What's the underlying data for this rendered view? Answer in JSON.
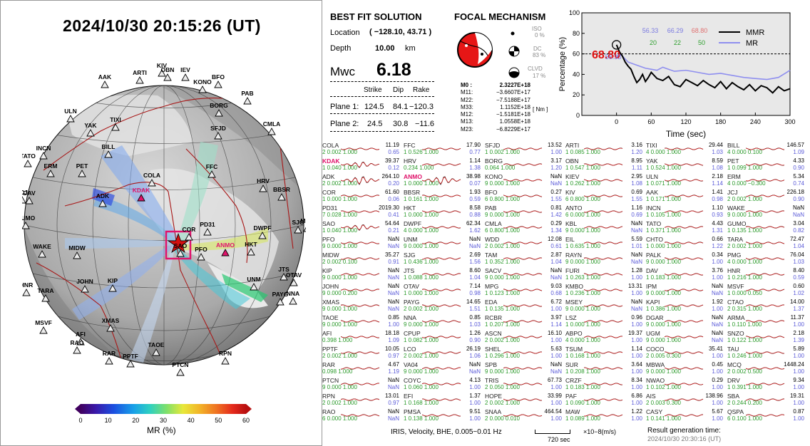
{
  "datetime": "2024/10/30  20:15:26 (UT)",
  "colorbar": {
    "label": "MR (%)",
    "ticks": [
      "0",
      "10",
      "20",
      "30",
      "40",
      "50",
      "60"
    ]
  },
  "solution": {
    "title": "BEST FIT SOLUTION",
    "location_label": "Location",
    "location_value": "( −128.10,  43.71 )",
    "depth_label": "Depth",
    "depth_value": "10.00",
    "depth_unit": "km",
    "mw_label": "Mwc",
    "mw_value": "6.18",
    "hdr": [
      "Strike",
      "Dip",
      "Rake"
    ],
    "plane1_label": "Plane 1:",
    "plane1": [
      "124.5",
      "84.1",
      "−120.3"
    ],
    "plane2_label": "Plane 2:",
    "plane2": [
      "24.5",
      "30.8",
      "−11.6"
    ]
  },
  "focal": {
    "title": "FOCAL MECHANISM",
    "iso_label": "ISO",
    "iso": "0 %",
    "dc_label": "DC",
    "dc": "83 %",
    "clvd_label": "CLVD",
    "clvd": "17 %",
    "m_unit": "[ Nm ]",
    "moments": [
      [
        "M0 :",
        "2.3227E+18"
      ],
      [
        "M11:",
        "−3.6607E+17"
      ],
      [
        "M22:",
        "−7.5188E+17"
      ],
      [
        "M33:",
        "1.1152E+18"
      ],
      [
        "M12:",
        "−1.5181E+18"
      ],
      [
        "M13:",
        "1.0558E+18"
      ],
      [
        "M23:",
        "−6.8229E+17"
      ]
    ]
  },
  "chart_data": {
    "type": "line",
    "xlabel": "Time (sec)",
    "ylabel": "Percentage (%)",
    "xlim": [
      -60,
      300
    ],
    "ylim": [
      0,
      100
    ],
    "xticks": [
      "0",
      "60",
      "120",
      "180",
      "240",
      "300"
    ],
    "yticks": [
      "0",
      "20",
      "40",
      "60",
      "80",
      "100"
    ],
    "peak_label": "68.80",
    "mr_marker_label": "56.33",
    "stats_top": [
      "56.33",
      "66.29",
      "68.80"
    ],
    "stats_bottom": [
      "20",
      "22",
      "50"
    ],
    "series": [
      {
        "name": "MMR",
        "color": "#000000",
        "x": [
          0,
          5,
          10,
          15,
          20,
          25,
          30,
          35,
          40,
          45,
          50,
          55,
          60,
          70,
          80,
          90,
          100,
          110,
          120,
          130,
          140,
          150,
          160,
          170,
          180,
          190,
          200,
          210,
          220,
          230,
          240,
          250,
          260,
          270,
          280,
          290,
          300
        ],
        "y": [
          68.8,
          62,
          58,
          52,
          48,
          45,
          38,
          32,
          35,
          40,
          33,
          37,
          42,
          36,
          34,
          38,
          30,
          28,
          35,
          32,
          29,
          34,
          30,
          27,
          33,
          26,
          32,
          28,
          25,
          30,
          24,
          29,
          27,
          22,
          28,
          24,
          26
        ]
      },
      {
        "name": "MR",
        "color": "#8f8fef",
        "x": [
          0,
          5,
          10,
          20,
          30,
          40,
          50,
          60,
          70,
          80,
          90,
          100,
          120,
          140,
          160,
          180,
          200,
          220,
          240,
          260,
          280,
          300
        ],
        "y": [
          56.3,
          60,
          58,
          52,
          50,
          48,
          46,
          45,
          44,
          47,
          45,
          43,
          44,
          42,
          40,
          41,
          39,
          37,
          36,
          35,
          37,
          44
        ]
      }
    ],
    "reference_line": 60
  },
  "stations": [
    [
      {
        "n": "COLA",
        "a": "11.19",
        "b": "0.65",
        "s": "2  0.002  1.000"
      },
      {
        "n": "KDAK",
        "a": "39.37",
        "b": "0.12",
        "s": "1  0.040  1.000",
        "red": true,
        "w": 1
      },
      {
        "n": "ADK",
        "a": "264.10",
        "b": "0.20",
        "s": "2  0.002  1.000",
        "w": 2
      },
      {
        "n": "COR",
        "a": "61.60",
        "b": "0.06",
        "s": "1  0.000  1.000"
      },
      {
        "n": "PD31",
        "a": "2019.30",
        "b": "0.41",
        "s": "7  0.028  1.000"
      },
      {
        "n": "SAO",
        "a": "54.64",
        "b": "0.21",
        "s": "1  0.040  1.000",
        "w": 1
      },
      {
        "n": "PFO",
        "a": "NaN",
        "b": "NaN",
        "s": "9  0.000  1.000"
      },
      {
        "n": "MIDW",
        "a": "35.27",
        "b": "0.91",
        "s": "2  0.002  0.100"
      },
      {
        "n": "KIP",
        "a": "NaN",
        "b": "NaN",
        "s": "9  0.000  1.000"
      },
      {
        "n": "JOHN",
        "a": "NaN",
        "b": "NaN",
        "s": "9  0.000  0.200"
      },
      {
        "n": "XMAS",
        "a": "NaN",
        "b": "NaN",
        "s": "9  0.000  1.000"
      },
      {
        "n": "TAOE",
        "a": "0.85",
        "b": "1.00",
        "s": "9  0.000  1.000"
      },
      {
        "n": "AFI",
        "a": "18.18",
        "b": "1.09",
        "s": "0.398  1.000"
      },
      {
        "n": "PPTF",
        "a": "10.05",
        "b": "0.97",
        "s": "2  0.002  1.000"
      },
      {
        "n": "RAR",
        "a": "4.67",
        "b": "1.19",
        "s": "0.098  1.000"
      },
      {
        "n": "PTCN",
        "a": "NaN",
        "b": "NaN",
        "s": "9  0.000  1.000"
      },
      {
        "n": "RPN",
        "a": "13.01",
        "b": "0.97",
        "s": "2  0.002  1.000"
      },
      {
        "n": "RAO",
        "a": "NaN",
        "b": "NaN",
        "s": "6  0.000  1.000"
      }
    ],
    [
      {
        "n": "FFC",
        "a": "17.90",
        "b": "0.77",
        "s": "1  0.526  1.000"
      },
      {
        "n": "HRV",
        "a": "1.14",
        "b": "1.38",
        "s": "0.234  1.000"
      },
      {
        "n": "ANMO",
        "a": "38.98",
        "b": "0.07",
        "s": "1  0.000  1.000",
        "red": true,
        "w": 2
      },
      {
        "n": "BBSR",
        "a": "1.93",
        "b": "0.59",
        "s": "1  0.161  1.000"
      },
      {
        "n": "HKT",
        "a": "8.58",
        "b": "0.88",
        "s": "1  0.000  1.000"
      },
      {
        "n": "DWPF",
        "a": "62.34",
        "b": "1.62",
        "s": "4  0.000  1.000"
      },
      {
        "n": "UNM",
        "a": "NaN",
        "b": "NaN",
        "s": "9  0.000  1.000"
      },
      {
        "n": "SJG",
        "a": "2.69",
        "b": "1.56",
        "s": "1  0.436  1.000"
      },
      {
        "n": "JTS",
        "a": "8.60",
        "b": "1.04",
        "s": "1  0.088  1.000"
      },
      {
        "n": "OTAV",
        "a": "7.14",
        "b": "0.98",
        "s": "1  0.000  1.000"
      },
      {
        "n": "PAYG",
        "a": "14.65",
        "b": "1.51",
        "s": "2  0.002  1.000"
      },
      {
        "n": "NNA",
        "a": "0.85",
        "b": "1.03",
        "s": "9  0.000  1.000"
      },
      {
        "n": "CPUP",
        "a": "1.26",
        "b": "0.90",
        "s": "1  0.082  1.000"
      },
      {
        "n": "LCO",
        "a": "26.19",
        "b": "1.06",
        "s": "2  0.002  1.000"
      },
      {
        "n": "VA04",
        "a": "NaN",
        "b": "NaN",
        "s": "9  0.000  1.000"
      },
      {
        "n": "COYC",
        "a": "4.13",
        "b": "1.00",
        "s": "1  0.060  1.000"
      },
      {
        "n": "EFI",
        "a": "1.37",
        "b": "1.00",
        "s": "1  0.168  1.000"
      },
      {
        "n": "PMSA",
        "a": "9.51",
        "b": "1.00",
        "s": "1  0.138  1.000"
      }
    ],
    [
      {
        "n": "SFJD",
        "a": "13.52",
        "b": "1.00",
        "s": "1  0.002  1.000"
      },
      {
        "n": "BORG",
        "a": "3.17",
        "b": "1.20",
        "s": "0.064  1.000"
      },
      {
        "n": "KONO",
        "a": "NaN",
        "b": "NaN",
        "s": "9  0.000  1.000"
      },
      {
        "n": "BFO",
        "a": "0.27",
        "b": "1.55",
        "s": "6  0.800  1.000"
      },
      {
        "n": "PAB",
        "a": "0.81",
        "b": "1.42",
        "s": "9  0.000  1.000"
      },
      {
        "n": "CMLA",
        "a": "0.29",
        "b": "1.34",
        "s": "6  0.800  1.000"
      },
      {
        "n": "WDD",
        "a": "12.08",
        "b": "0.61",
        "s": "2  0.002  1.000"
      },
      {
        "n": "TAM",
        "a": "2.87",
        "b": "1.04",
        "s": "1  0.352  1.000"
      },
      {
        "n": "SACV",
        "a": "NaN",
        "b": "NaN",
        "s": "9  0.000  1.000"
      },
      {
        "n": "MPG",
        "a": "9.03",
        "b": "0.68",
        "s": "1  0.123  1.000"
      },
      {
        "n": "EDA",
        "a": "6.72",
        "b": "1.00",
        "s": "1  0.135  1.000"
      },
      {
        "n": "RCBR",
        "a": "3.97",
        "b": "1.14",
        "s": "1  0.207  1.000"
      },
      {
        "n": "ASCN",
        "a": "16.10",
        "b": "1.00",
        "s": "2  0.002  1.000"
      },
      {
        "n": "SHEL",
        "a": "5.63",
        "b": "1.00",
        "s": "1  0.296  1.000"
      },
      {
        "n": "SPB",
        "a": "NaN",
        "b": "NaN",
        "s": "9  0.000  1.000"
      },
      {
        "n": "TRIS",
        "a": "67.73",
        "b": "1.00",
        "s": "2  0.050  1.000"
      },
      {
        "n": "HOPE",
        "a": "33.99",
        "b": "1.00",
        "s": "2  0.002  1.000"
      },
      {
        "n": "SNAA",
        "a": "464.54",
        "b": "1.00",
        "s": "2  0.000  0.010"
      }
    ],
    [
      {
        "n": "ARTI",
        "a": "3.16",
        "b": "1.20",
        "s": "1  0.085  1.000"
      },
      {
        "n": "OBN",
        "a": "8.95",
        "b": "1.11",
        "s": "1  0.547  1.000"
      },
      {
        "n": "KIEV",
        "a": "2.95",
        "b": "1.08",
        "s": "1  0.262  1.000"
      },
      {
        "n": "KIV",
        "a": "0.69",
        "b": "1.55",
        "s": "6  0.800  1.000"
      },
      {
        "n": "ANTO",
        "a": "1.16",
        "b": "0.69",
        "s": "6  0.000  1.000"
      },
      {
        "n": "KBL",
        "a": "NaN",
        "b": "NaN",
        "s": "9  0.000  1.000"
      },
      {
        "n": "EIL",
        "a": "5.59",
        "b": "1.01",
        "s": "1  0.635  1.000"
      },
      {
        "n": "RAYN",
        "a": "NaN",
        "b": "NaN",
        "s": "9  0.000  1.000"
      },
      {
        "n": "FURI",
        "a": "1.28",
        "b": "1.00",
        "s": "1  0.263  1.000"
      },
      {
        "n": "KMBO",
        "a": "13.31",
        "b": "1.00",
        "s": "1  0.236  1.000"
      },
      {
        "n": "MSEY",
        "a": "NaN",
        "b": "NaN",
        "s": "9  0.000  1.000"
      },
      {
        "n": "LSZ",
        "a": "0.96",
        "b": "1.00",
        "s": "1  0.000  1.000"
      },
      {
        "n": "ABPO",
        "a": "19.37",
        "b": "1.00",
        "s": "4  0.000  1.000"
      },
      {
        "n": "TSUM",
        "a": "1.14",
        "b": "1.00",
        "s": "1  0.168  1.000"
      },
      {
        "n": "SUR",
        "a": "3.64",
        "b": "1.00",
        "s": "1  0.208  1.000"
      },
      {
        "n": "CRZF",
        "a": "8.34",
        "b": "1.00",
        "s": "1  0.183  1.000"
      },
      {
        "n": "PAF",
        "a": "6.86",
        "b": "1.00",
        "s": "1  0.090  1.000"
      },
      {
        "n": "MAW",
        "a": "1.22",
        "b": "1.00",
        "s": "1  0.089  1.000"
      }
    ],
    [
      {
        "n": "TIXI",
        "a": "29.44",
        "b": "1.03",
        "s": "4  0.000  1.000"
      },
      {
        "n": "YAK",
        "a": "8.59",
        "b": "1.08",
        "s": "1  0.524  1.000"
      },
      {
        "n": "ULN",
        "a": "2.18",
        "b": "1.14",
        "s": "1  0.071  1.000"
      },
      {
        "n": "AAK",
        "a": "1.41",
        "b": "0.98",
        "s": "1  0.171  1.000"
      },
      {
        "n": "INCN",
        "a": "1.10",
        "b": "0.93",
        "s": "1  0.105  1.000"
      },
      {
        "n": "TATO",
        "a": "4.43",
        "b": "1.31",
        "s": "1  0.371  1.000"
      },
      {
        "n": "CHTO",
        "a": "0.66",
        "b": "1.22",
        "s": "1  0.000  1.000"
      },
      {
        "n": "PALK",
        "a": "0.34",
        "b": "1.00",
        "s": "9  0.000  1.000"
      },
      {
        "n": "DAV",
        "a": "3.76",
        "b": "1.00",
        "s": "1  0.183  1.000"
      },
      {
        "n": "IPM",
        "a": "NaN",
        "b": "NaN",
        "s": "9  0.000  1.000"
      },
      {
        "n": "KAPI",
        "a": "1.92",
        "b": "1.00",
        "s": "1  0.386  1.000"
      },
      {
        "n": "DGAR",
        "a": "NaN",
        "b": "NaN",
        "s": "9  0.000  1.000"
      },
      {
        "n": "UGM",
        "a": "NaN",
        "b": "NaN",
        "s": "9  0.000  1.000"
      },
      {
        "n": "COCO",
        "a": "35.41",
        "b": "1.00",
        "s": "2  0.005  0.300"
      },
      {
        "n": "MBWA",
        "a": "0.45",
        "b": "1.00",
        "s": "9  0.000  1.000"
      },
      {
        "n": "NWAO",
        "a": "0.29",
        "b": "1.00",
        "s": "1  0.102  1.000"
      },
      {
        "n": "AIS",
        "a": "138.96",
        "b": "1.00",
        "s": "2  0.003  0.300"
      },
      {
        "n": "CASY",
        "a": "5.67",
        "b": "1.00",
        "s": "1  0.141  1.000"
      }
    ],
    [
      {
        "n": "BILL",
        "a": "146.57",
        "b": "1.09",
        "s": "4  0.000  0.100"
      },
      {
        "n": "PET",
        "a": "4.33",
        "b": "0.90",
        "s": "1  0.099  1.000"
      },
      {
        "n": "ERM",
        "a": "5.34",
        "b": "0.74",
        "s": "4  0.000  −0.300"
      },
      {
        "n": "JCJ",
        "a": "226.18",
        "b": "0.90",
        "s": "2  0.002  1.000"
      },
      {
        "n": "WAKE",
        "a": "NaN",
        "b": "NaN",
        "s": "9  0.000  1.000"
      },
      {
        "n": "GUMO",
        "a": "3.04",
        "b": "0.82",
        "s": "1  0.135  1.000"
      },
      {
        "n": "TARA",
        "a": "72.47",
        "b": "1.04",
        "s": "2  0.002  1.000"
      },
      {
        "n": "PMG",
        "a": "76.04",
        "b": "1.03",
        "s": "4  0.000  1.000"
      },
      {
        "n": "HNR",
        "a": "8.40",
        "b": "0.59",
        "s": "1  0.216  1.000"
      },
      {
        "n": "MSVF",
        "a": "0.60",
        "b": "1.02",
        "s": "1  0.000  0.050"
      },
      {
        "n": "CTAO",
        "a": "14.00",
        "b": "1.37",
        "s": "2  0.315  1.000"
      },
      {
        "n": "ARMA",
        "a": "11.37",
        "b": "1.00",
        "s": "1  0.110  1.000"
      },
      {
        "n": "SNZO",
        "a": "2.18",
        "b": "1.39",
        "s": "1  0.122  1.000"
      },
      {
        "n": "TAU",
        "a": "5.89",
        "b": "1.00",
        "s": "1  0.246  1.000"
      },
      {
        "n": "MCQ",
        "a": "1448.24",
        "b": "1.00",
        "s": "2  0.002  0.500"
      },
      {
        "n": "DRV",
        "a": "9.34",
        "b": "1.00",
        "s": "1  0.391  1.000"
      },
      {
        "n": "SBA",
        "a": "19.31",
        "b": "1.00",
        "s": "2  0.244  0.200"
      },
      {
        "n": "QSPA",
        "a": "0.87",
        "b": "1.00",
        "s": "6  0.100  1.000"
      }
    ]
  ],
  "footer": {
    "text": "IRIS,  Velocity,    BHE,  0.005−0.01 Hz",
    "scale": "720 sec",
    "units": "×10−8(m/s)",
    "gen_label": "Result generation time:",
    "gen_time": "2024/10/30  20:30:16 (UT)"
  }
}
